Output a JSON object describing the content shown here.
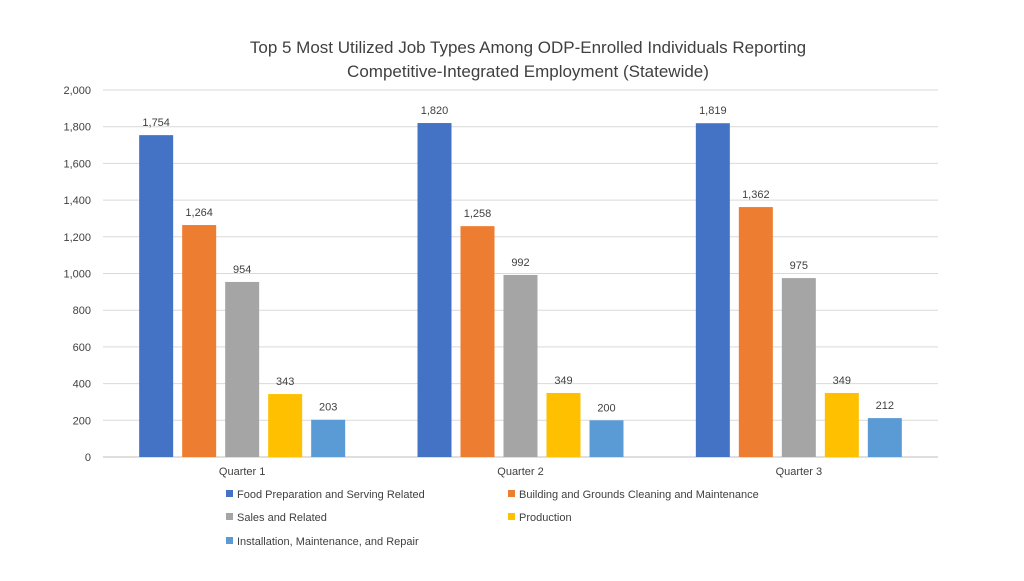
{
  "chart_data": {
    "type": "bar",
    "title_lines": [
      "Top 5 Most Utilized Job Types Among ODP-Enrolled Individuals Reporting",
      "Competitive-Integrated Employment (Statewide)"
    ],
    "categories": [
      "Quarter 1",
      "Quarter 2",
      "Quarter 3"
    ],
    "series": [
      {
        "name": "Food Preparation and Serving Related",
        "color": "#4472c4",
        "values": [
          1754,
          1820,
          1819
        ],
        "labels": [
          "1,754",
          "1,820",
          "1,819"
        ]
      },
      {
        "name": "Building and Grounds Cleaning and Maintenance",
        "color": "#ed7d31",
        "values": [
          1264,
          1258,
          1362
        ],
        "labels": [
          "1,264",
          "1,258",
          "1,362"
        ]
      },
      {
        "name": "Sales and Related",
        "color": "#a5a5a5",
        "values": [
          954,
          992,
          975
        ],
        "labels": [
          "954",
          "992",
          "975"
        ]
      },
      {
        "name": "Production",
        "color": "#ffc000",
        "values": [
          343,
          349,
          349
        ],
        "labels": [
          "343",
          "349",
          "349"
        ]
      },
      {
        "name": "Installation, Maintenance, and Repair",
        "color": "#5b9bd5",
        "values": [
          203,
          200,
          212
        ],
        "labels": [
          "203",
          "200",
          "212"
        ]
      }
    ],
    "ylim": [
      0,
      2000
    ],
    "yticks": [
      0,
      200,
      400,
      600,
      800,
      1000,
      1200,
      1400,
      1600,
      1800,
      2000
    ],
    "ytick_labels": [
      "0",
      "200",
      "400",
      "600",
      "800",
      "1,000",
      "1,200",
      "1,400",
      "1,600",
      "1,800",
      "2,000"
    ],
    "xlabel": "",
    "ylabel": "",
    "grid": true,
    "legend_position": "bottom"
  }
}
